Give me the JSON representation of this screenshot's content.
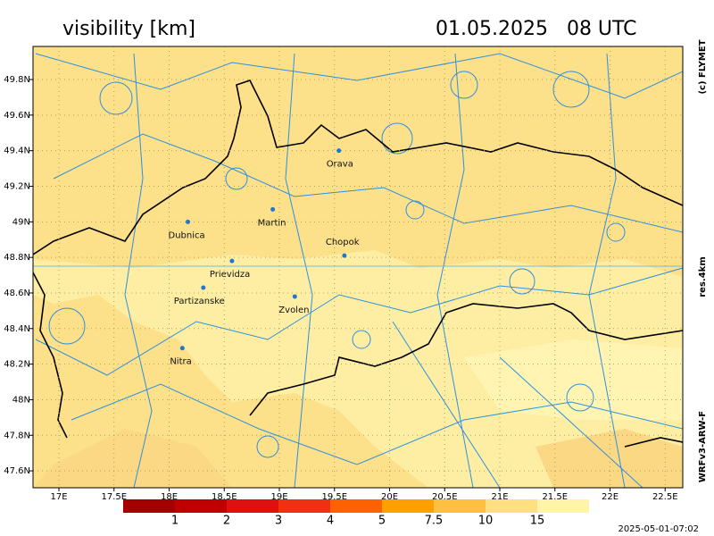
{
  "title": "visibility [km]",
  "datetime": "01.05.2025   08 UTC",
  "copyright": "(c) FLYMET",
  "resolution": "res.4km",
  "model": "WRFv3-ARW-F",
  "timestamp": "2025-05-01-07:02",
  "map": {
    "xlim": [
      16.765,
      22.66
    ],
    "ylim": [
      47.505,
      49.986
    ],
    "xticks": [
      {
        "value": 17,
        "label": "17E"
      },
      {
        "value": 17.5,
        "label": "17.5E"
      },
      {
        "value": 18,
        "label": "18E"
      },
      {
        "value": 18.5,
        "label": "18.5E"
      },
      {
        "value": 19,
        "label": "19E"
      },
      {
        "value": 19.5,
        "label": "19.5E"
      },
      {
        "value": 20,
        "label": "20E"
      },
      {
        "value": 20.5,
        "label": "20.5E"
      },
      {
        "value": 21,
        "label": "21E"
      },
      {
        "value": 21.5,
        "label": "21.5E"
      },
      {
        "value": 22,
        "label": "22E"
      },
      {
        "value": 22.5,
        "label": "22.5E"
      }
    ],
    "yticks": [
      {
        "value": 47.6,
        "label": "47.6N"
      },
      {
        "value": 47.8,
        "label": "47.8N"
      },
      {
        "value": 48,
        "label": "48N"
      },
      {
        "value": 48.2,
        "label": "48.2N"
      },
      {
        "value": 48.4,
        "label": "48.4N"
      },
      {
        "value": 48.6,
        "label": "48.6N"
      },
      {
        "value": 48.8,
        "label": "48.8N"
      },
      {
        "value": 49,
        "label": "49N"
      },
      {
        "value": 49.2,
        "label": "49.2N"
      },
      {
        "value": 49.4,
        "label": "49.4N"
      },
      {
        "value": 49.6,
        "label": "49.6N"
      },
      {
        "value": 49.8,
        "label": "49.8N"
      }
    ],
    "cities": [
      {
        "name": "Orava",
        "lon": 19.54,
        "lat": 49.4
      },
      {
        "name": "Martin",
        "lon": 18.94,
        "lat": 49.07
      },
      {
        "name": "Dubnica",
        "lon": 18.17,
        "lat": 49.0
      },
      {
        "name": "Chopok",
        "lon": 19.59,
        "lat": 48.81
      },
      {
        "name": "Prievidza",
        "lon": 18.57,
        "lat": 48.78
      },
      {
        "name": "Partizanske",
        "lon": 18.31,
        "lat": 48.63
      },
      {
        "name": "Zvolen",
        "lon": 19.14,
        "lat": 48.58
      },
      {
        "name": "Nitra",
        "lon": 18.12,
        "lat": 48.29
      }
    ]
  },
  "legend": {
    "colors": [
      "#a50000",
      "#c00000",
      "#e01010",
      "#f03010",
      "#ff6000",
      "#ffa000",
      "#ffc040",
      "#ffe080",
      "#fff4a8"
    ],
    "labels": [
      1,
      2,
      3,
      4,
      5,
      7.5,
      10,
      15
    ]
  }
}
